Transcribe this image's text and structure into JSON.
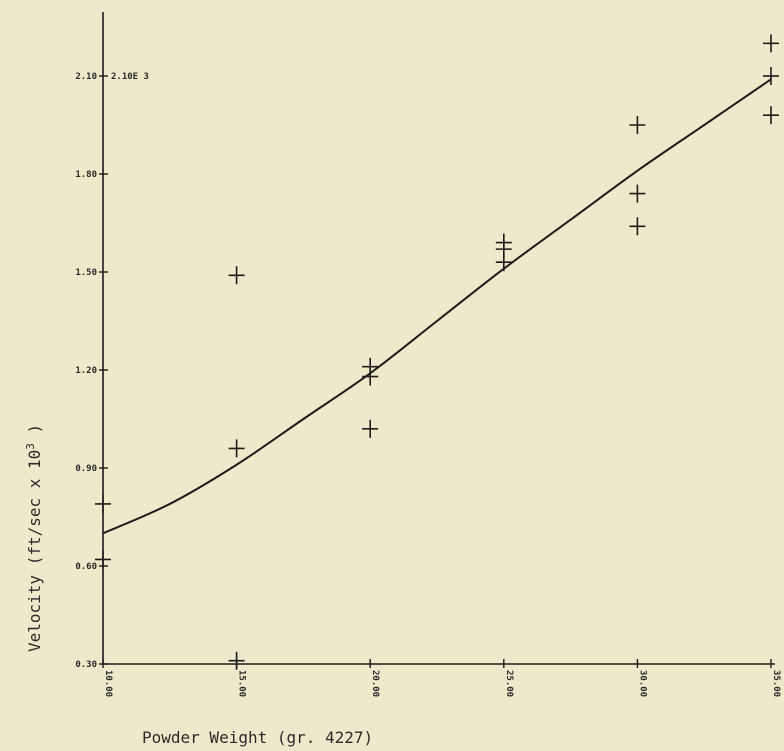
{
  "chart_data": {
    "type": "scatter",
    "title": "",
    "xlabel": "Powder Weight (gr. 4227)",
    "ylabel_main": "Velocity (ft/sec x 10",
    "ylabel_sup": "3",
    "ylabel_close": " )",
    "xlim": [
      10.0,
      35.0
    ],
    "ylim": [
      0.3,
      2.4
    ],
    "x_ticks": [
      {
        "value": 10,
        "label": "10.00"
      },
      {
        "value": 15,
        "label": "15.00"
      },
      {
        "value": 20,
        "label": "20.00"
      },
      {
        "value": 25,
        "label": "25.00"
      },
      {
        "value": 30,
        "label": "30.00"
      },
      {
        "value": 35,
        "label": "35.00"
      }
    ],
    "y_ticks": [
      {
        "value": 0.3,
        "label": "0.30"
      },
      {
        "value": 0.6,
        "label": "0.60"
      },
      {
        "value": 0.9,
        "label": "0.90"
      },
      {
        "value": 1.2,
        "label": "1.20"
      },
      {
        "value": 1.5,
        "label": "1.50"
      },
      {
        "value": 1.8,
        "label": "1.80"
      },
      {
        "value": 2.1,
        "label": "2.10"
      }
    ],
    "corner_annotation": "2.10E 3",
    "points": [
      {
        "x": 10.0,
        "y": 0.79
      },
      {
        "x": 10.0,
        "y": 0.62
      },
      {
        "x": 15.0,
        "y": 1.49
      },
      {
        "x": 15.0,
        "y": 0.96
      },
      {
        "x": 15.0,
        "y": 0.31
      },
      {
        "x": 20.0,
        "y": 1.21
      },
      {
        "x": 20.0,
        "y": 1.18
      },
      {
        "x": 20.0,
        "y": 1.02
      },
      {
        "x": 25.0,
        "y": 1.59
      },
      {
        "x": 25.0,
        "y": 1.57
      },
      {
        "x": 25.0,
        "y": 1.53
      },
      {
        "x": 30.0,
        "y": 1.95
      },
      {
        "x": 30.0,
        "y": 1.74
      },
      {
        "x": 30.0,
        "y": 1.64
      },
      {
        "x": 35.0,
        "y": 2.2
      },
      {
        "x": 35.0,
        "y": 2.1
      },
      {
        "x": 35.0,
        "y": 1.98
      }
    ],
    "fit_curve": [
      {
        "x": 10,
        "y": 0.7
      },
      {
        "x": 12.5,
        "y": 0.79
      },
      {
        "x": 15,
        "y": 0.91
      },
      {
        "x": 17.5,
        "y": 1.05
      },
      {
        "x": 20,
        "y": 1.19
      },
      {
        "x": 22.5,
        "y": 1.35
      },
      {
        "x": 25,
        "y": 1.51
      },
      {
        "x": 27.5,
        "y": 1.66
      },
      {
        "x": 30,
        "y": 1.81
      },
      {
        "x": 32.5,
        "y": 1.95
      },
      {
        "x": 35,
        "y": 2.09
      }
    ],
    "grid": false,
    "legend": "none",
    "colors": {
      "ink": "#1c1c1c",
      "background": "#efe9cc"
    }
  }
}
